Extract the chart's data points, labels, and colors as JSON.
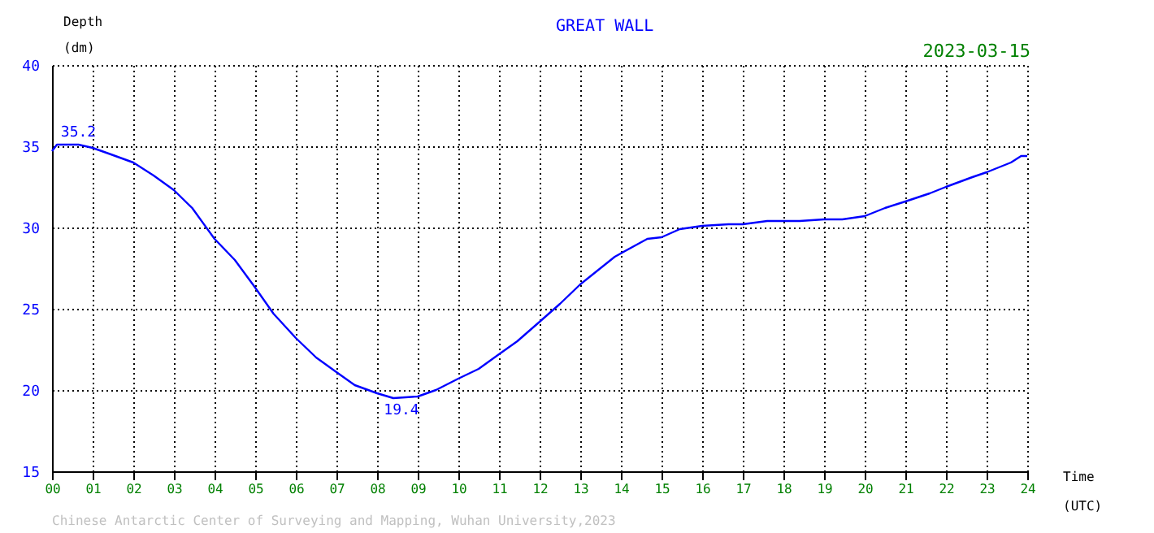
{
  "chart_data": {
    "type": "line",
    "title": "GREAT WALL",
    "xlabel": "Time (UTC)",
    "ylabel": "Depth (dm)",
    "xlim": [
      0,
      24
    ],
    "ylim": [
      15,
      40
    ],
    "xticks": [
      {
        "value": 0,
        "label": "00"
      },
      {
        "value": 1,
        "label": "01"
      },
      {
        "value": 2,
        "label": "02"
      },
      {
        "value": 3,
        "label": "03"
      },
      {
        "value": 4,
        "label": "04"
      },
      {
        "value": 5,
        "label": "05"
      },
      {
        "value": 6,
        "label": "06"
      },
      {
        "value": 7,
        "label": "07"
      },
      {
        "value": 8,
        "label": "08"
      },
      {
        "value": 9,
        "label": "09"
      },
      10,
      11,
      12,
      13,
      14,
      15,
      16,
      17,
      18,
      19,
      20,
      21,
      22,
      23,
      24
    ],
    "yticks": [
      15,
      20,
      25,
      30,
      35,
      40
    ],
    "grid": true,
    "marker": "none",
    "line_style": "solid",
    "x": [
      0,
      0.12,
      0.65,
      1,
      1.45,
      2,
      2.5,
      3,
      3.45,
      4,
      4.5,
      5,
      5.45,
      6,
      6.5,
      7,
      7.45,
      8,
      8.4,
      9,
      9.45,
      10,
      10.5,
      11,
      11.45,
      12,
      12.5,
      13,
      13.85,
      14.65,
      15,
      15.45,
      16,
      16.65,
      17,
      17.6,
      18,
      18.4,
      19,
      19.45,
      20,
      20.5,
      21,
      21.6,
      22,
      22.65,
      23,
      23.6,
      23.85,
      24
    ],
    "series": [
      {
        "color": "#0000ff",
        "values": [
          34.7,
          35.1,
          35.1,
          34.9,
          34.5,
          34.0,
          33.2,
          32.3,
          31.2,
          29.3,
          28.0,
          26.3,
          24.7,
          23.2,
          22.0,
          21.1,
          20.3,
          19.8,
          19.5,
          19.6,
          20.0,
          20.7,
          21.3,
          22.2,
          23.0,
          24.2,
          25.3,
          26.5,
          28.2,
          29.3,
          29.4,
          29.9,
          30.1,
          30.2,
          30.2,
          30.4,
          30.4,
          30.4,
          30.5,
          30.5,
          30.7,
          31.2,
          31.6,
          32.1,
          32.5,
          33.1,
          33.4,
          34.0,
          34.4,
          34.4
        ]
      }
    ],
    "annotations": [
      {
        "text": "35.2",
        "x": 0.65,
        "y": 35.2
      },
      {
        "text": "19.4",
        "x": 8.6,
        "y": 19.4
      },
      "2023-03-15",
      "Chinese Antarctic Center of Surveying and Mapping, Wuhan University,2023"
    ]
  }
}
